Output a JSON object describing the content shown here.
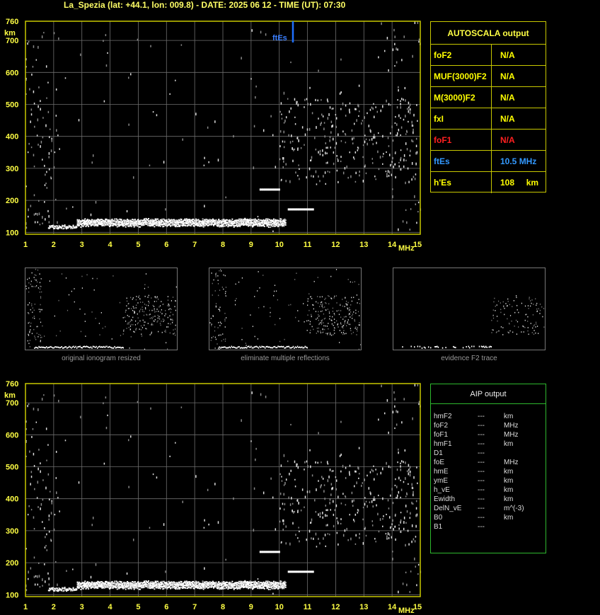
{
  "header": {
    "title": "La_Spezia (lat: +44.1, lon: 009.8) - DATE: 2025 06 12 - TIME (UT): 07:30"
  },
  "ionogram": {
    "y_unit": "km",
    "x_unit": "MHz",
    "y_ticks": [
      "760",
      "700",
      "600",
      "500",
      "400",
      "300",
      "200",
      "100"
    ],
    "x_ticks": [
      "1",
      "2",
      "3",
      "4",
      "5",
      "6",
      "7",
      "8",
      "9",
      "10",
      "11",
      "12",
      "13",
      "14",
      "15"
    ],
    "marker_label": "ftEs"
  },
  "autoscala": {
    "title": "AUTOSCALA output",
    "rows": [
      {
        "label": "foF2",
        "value": "N/A",
        "color": "#ffff00"
      },
      {
        "label": "MUF(3000)F2",
        "value": "N/A",
        "color": "#ffff00"
      },
      {
        "label": "M(3000)F2",
        "value": "N/A",
        "color": "#ffff00"
      },
      {
        "label": "fxI",
        "value": "N/A",
        "color": "#ffff00"
      },
      {
        "label": "foF1",
        "value": "N/A",
        "color": "#ff2020"
      },
      {
        "label": "ftEs",
        "value": "10.5 MHz",
        "color": "#3399ff"
      },
      {
        "label": "h'Es",
        "value": "108     km",
        "color": "#ffff00"
      }
    ]
  },
  "thumbnails": [
    {
      "caption": "original ionogram resized"
    },
    {
      "caption": "eliminate multiple reflections"
    },
    {
      "caption": "evidence F2 trace"
    }
  ],
  "aip": {
    "title": "AIP output",
    "rows": [
      {
        "name": "hmF2",
        "value": "---",
        "unit": "km"
      },
      {
        "name": "foF2",
        "value": "---",
        "unit": "MHz"
      },
      {
        "name": "foF1",
        "value": "---",
        "unit": "MHz"
      },
      {
        "name": "hmF1",
        "value": "---",
        "unit": "km"
      },
      {
        "name": "D1",
        "value": "---",
        "unit": ""
      },
      {
        "name": "foE",
        "value": "---",
        "unit": "MHz"
      },
      {
        "name": "hmE",
        "value": "---",
        "unit": "km"
      },
      {
        "name": "ymE",
        "value": "---",
        "unit": "km"
      },
      {
        "name": "h_vE",
        "value": "---",
        "unit": "km"
      },
      {
        "name": "Ewidth",
        "value": "---",
        "unit": "km"
      },
      {
        "name": "DelN_vE",
        "value": "---",
        "unit": "m^(-3)"
      },
      {
        "name": "B0",
        "value": "---",
        "unit": "km"
      },
      {
        "name": "B1",
        "value": "---",
        "unit": ""
      }
    ]
  },
  "colors": {
    "axis": "#c8c800",
    "grid": "#6e6e6e",
    "tick_label": "#ffff44",
    "marker": "#1e6fff",
    "aip_border": "#2eb82e"
  }
}
